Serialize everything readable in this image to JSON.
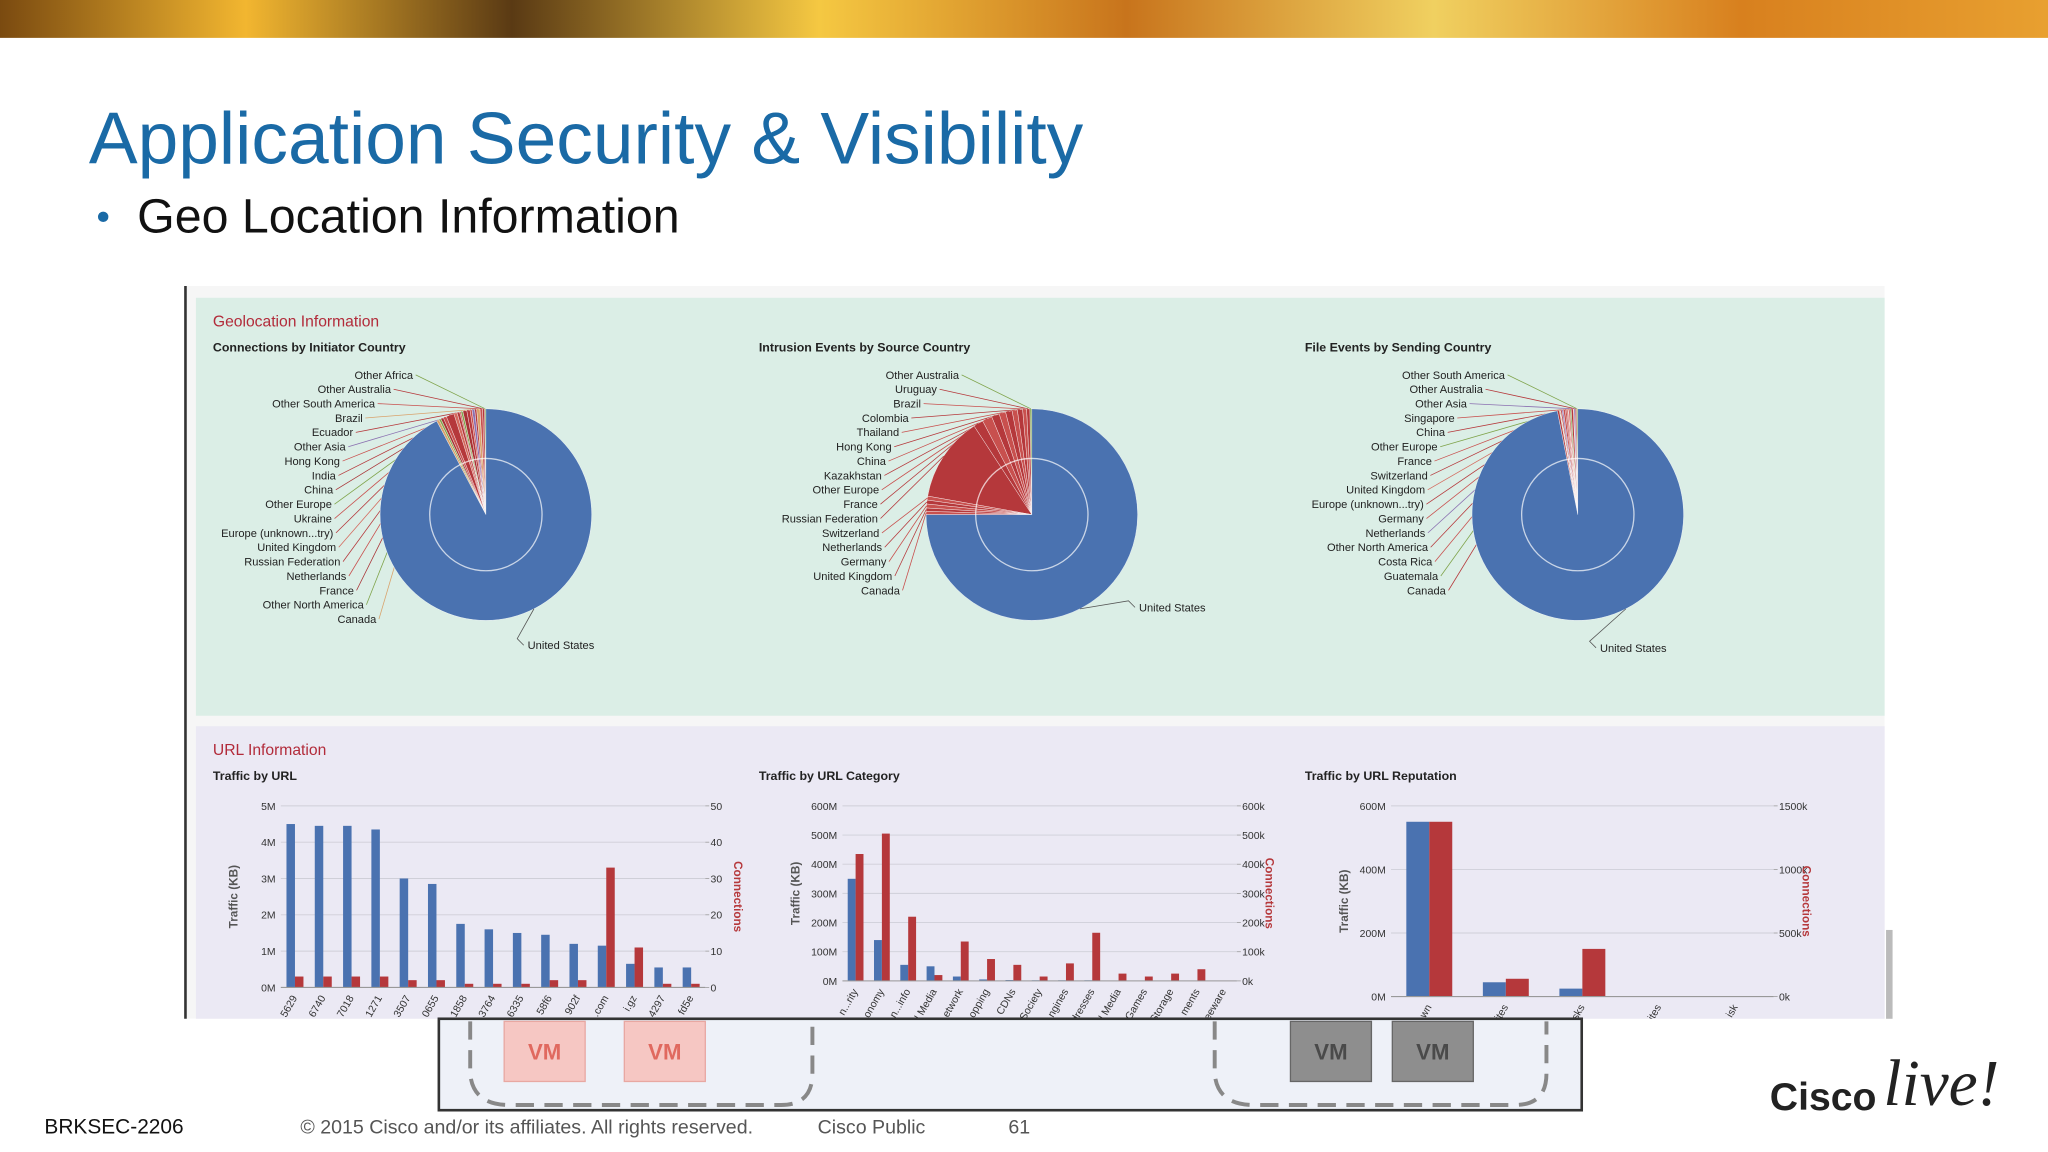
{
  "slide": {
    "title": "Application Security & Visibility",
    "bullet": "Geo Location Information",
    "sections": [
      "Geolocation Information",
      "URL Information"
    ],
    "diagram": {
      "vm_labels": [
        "VM",
        "VM",
        "VM",
        "VM"
      ]
    },
    "footer": {
      "session": "BRKSEC-2206",
      "copyright": "© 2015 Cisco and/or its affiliates. All rights reserved.",
      "classification": "Cisco Public",
      "page": "61"
    },
    "logo": {
      "brand": "Cisco",
      "event": "live!"
    }
  },
  "chart_data": [
    {
      "type": "pie",
      "title": "Connections by Initiator Country",
      "categories": [
        "Other Africa",
        "Other Australia",
        "Other South America",
        "Brazil",
        "Ecuador",
        "Other Asia",
        "Hong Kong",
        "India",
        "China",
        "Other Europe",
        "Ukraine",
        "Europe (unknown...try)",
        "United Kingdom",
        "Russian Federation",
        "Netherlands",
        "France",
        "Other North America",
        "Canada",
        "United States"
      ],
      "values": [
        0.2,
        0.3,
        0.4,
        0.5,
        0.3,
        0.4,
        0.3,
        0.5,
        0.6,
        0.3,
        0.2,
        0.4,
        0.5,
        1.2,
        0.5,
        0.4,
        0.3,
        0.4,
        92.3
      ],
      "colors": [
        "#7fa34a",
        "#b5383b",
        "#c8504e",
        "#d9a26b",
        "#b5383b",
        "#8a6fb0",
        "#c8504e",
        "#b5383b",
        "#a83235",
        "#7fa34a",
        "#c8504e",
        "#b5383b",
        "#d46a5e",
        "#b5383b",
        "#c8504e",
        "#a83235",
        "#7fa34a",
        "#d9a26b",
        "#4a72b0"
      ]
    },
    {
      "type": "pie",
      "title": "Intrusion Events by Source Country",
      "categories": [
        "Other Australia",
        "Uruguay",
        "Brazil",
        "Colombia",
        "Thailand",
        "Hong Kong",
        "China",
        "Kazakhstan",
        "Other Europe",
        "France",
        "Russian Federation",
        "Switzerland",
        "Netherlands",
        "Germany",
        "United Kingdom",
        "Canada",
        "United States"
      ],
      "values": [
        0.3,
        0.5,
        0.6,
        0.8,
        0.8,
        1,
        1,
        1.2,
        1.5,
        1.5,
        13,
        0.6,
        0.6,
        0.6,
        0.5,
        0.5,
        75
      ],
      "colors": [
        "#7fa34a",
        "#b5383b",
        "#c8504e",
        "#b5383b",
        "#c8504e",
        "#b5383b",
        "#c8504e",
        "#b5383b",
        "#c8504e",
        "#b5383b",
        "#b5383b",
        "#c8504e",
        "#b5383b",
        "#c8504e",
        "#b5383b",
        "#c8504e",
        "#4a72b0"
      ]
    },
    {
      "type": "pie",
      "title": "File Events by Sending Country",
      "categories": [
        "Other South America",
        "Other Australia",
        "Other Asia",
        "Singapore",
        "China",
        "Other Europe",
        "France",
        "Switzerland",
        "United Kingdom",
        "Europe (unknown...try)",
        "Germany",
        "Netherlands",
        "Other North America",
        "Costa Rica",
        "Guatemala",
        "Canada",
        "United States"
      ],
      "values": [
        0.2,
        0.2,
        0.2,
        0.1,
        0.3,
        0.2,
        0.2,
        0.1,
        0.2,
        0.2,
        0.3,
        0.2,
        0.2,
        0.1,
        0.1,
        0.3,
        96.7
      ],
      "colors": [
        "#7fa34a",
        "#b5383b",
        "#8a6fb0",
        "#c8504e",
        "#b5383b",
        "#7fa34a",
        "#c8504e",
        "#b5383b",
        "#d46a5e",
        "#b5383b",
        "#c8504e",
        "#8a6fb0",
        "#b5383b",
        "#c8504e",
        "#7fa34a",
        "#b5383b",
        "#4a72b0"
      ]
    },
    {
      "type": "bar",
      "title": "Traffic by URL",
      "y_label": "Traffic (KB)",
      "y2_label": "Connections",
      "categories": [
        "5629",
        "6740",
        "7018",
        "1271",
        "3507",
        "0655",
        "1858",
        "3764",
        "6335",
        "58f6",
        "902f",
        ".com",
        "i.gz",
        "4297",
        "fd5e"
      ],
      "series": [
        {
          "color": "#4a72b0",
          "values": [
            4.5,
            4.45,
            4.45,
            4.35,
            3.0,
            2.85,
            1.75,
            1.6,
            1.5,
            1.45,
            1.2,
            1.15,
            0.65,
            0.55,
            0.55
          ]
        },
        {
          "color": "#b5383b",
          "axis": "y2",
          "values": [
            3,
            3,
            3,
            3,
            2,
            2,
            1,
            1,
            1,
            2,
            2,
            33,
            11,
            1,
            1
          ]
        }
      ],
      "ylim": [
        0,
        5
      ],
      "yticks": [
        {
          "value": 0,
          "label": "0M"
        },
        {
          "value": 1,
          "label": "1M"
        },
        {
          "value": 2,
          "label": "2M"
        },
        {
          "value": 3,
          "label": "3M"
        },
        {
          "value": 4,
          "label": "4M"
        },
        {
          "value": 5,
          "label": "5M"
        }
      ],
      "y2lim": [
        0,
        50
      ],
      "y2ticks": [
        0,
        10,
        20,
        30,
        40,
        50
      ],
      "grid": true
    },
    {
      "type": "bar",
      "title": "Traffic by URL Category",
      "y_label": "Traffic (KB)",
      "y2_label": "Connections",
      "categories": [
        "n...rity",
        "onomy",
        "n...info",
        "l Media",
        "etwork",
        "opping",
        "CDNs",
        "Society",
        "ngines",
        "dresses",
        "l Media",
        "Games",
        "Storage",
        "ments",
        "eeware"
      ],
      "series": [
        {
          "color": "#4a72b0",
          "values": [
            350,
            140,
            55,
            50,
            15,
            5,
            3,
            2,
            2,
            2,
            1,
            1,
            1,
            1,
            1
          ]
        },
        {
          "color": "#b5383b",
          "axis": "y2",
          "values": [
            435,
            505,
            220,
            20,
            135,
            75,
            55,
            15,
            60,
            165,
            25,
            15,
            25,
            40,
            0
          ]
        }
      ],
      "ylim": [
        0,
        600
      ],
      "yticks": [
        {
          "value": 0,
          "label": "0M"
        },
        {
          "value": 100,
          "label": "100M"
        },
        {
          "value": 200,
          "label": "200M"
        },
        {
          "value": 300,
          "label": "300M"
        },
        {
          "value": 400,
          "label": "400M"
        },
        {
          "value": 500,
          "label": "500M"
        },
        {
          "value": 600,
          "label": "600M"
        }
      ],
      "y2lim": [
        0,
        600
      ],
      "y2ticks": [
        {
          "value": 0,
          "label": "0k"
        },
        {
          "value": 100,
          "label": "100k"
        },
        {
          "value": 200,
          "label": "200k"
        },
        {
          "value": 300,
          "label": "300k"
        },
        {
          "value": 400,
          "label": "400k"
        },
        {
          "value": 500,
          "label": "500k"
        },
        {
          "value": 600,
          "label": "600k"
        }
      ],
      "grid": true
    },
    {
      "type": "bar",
      "title": "Traffic by URL Reputation",
      "y_label": "Traffic (KB)",
      "y2_label": "Connections",
      "categories": [
        "wn",
        "ites",
        "isks",
        "ites",
        "isk"
      ],
      "series": [
        {
          "color": "#4a72b0",
          "values": [
            550,
            45,
            25,
            0,
            0
          ]
        },
        {
          "color": "#b5383b",
          "axis": "y2",
          "values": [
            1375,
            140,
            375,
            0,
            0
          ]
        }
      ],
      "ylim": [
        0,
        600
      ],
      "yticks": [
        {
          "value": 0,
          "label": "0M"
        },
        {
          "value": 200,
          "label": "200M"
        },
        {
          "value": 400,
          "label": "400M"
        },
        {
          "value": 600,
          "label": "600M"
        }
      ],
      "y2lim": [
        0,
        1500
      ],
      "y2ticks": [
        {
          "value": 0,
          "label": "0k"
        },
        {
          "value": 500,
          "label": "500k"
        },
        {
          "value": 1000,
          "label": "1000k"
        },
        {
          "value": 1500,
          "label": "1500k"
        }
      ],
      "grid": true
    }
  ]
}
